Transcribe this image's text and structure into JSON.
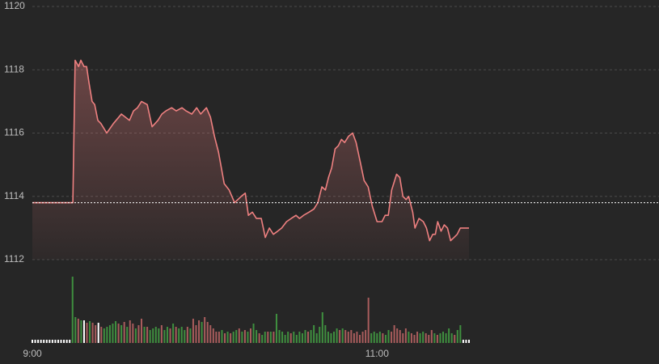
{
  "chart_data": {
    "type": "line",
    "x": [
      0,
      14.1,
      14.9,
      16.1,
      16.9,
      18.0,
      18.9,
      19.7,
      20.8,
      21.7,
      22.8,
      23.9,
      25.9,
      28.2,
      31.0,
      32.4,
      33.8,
      35.2,
      36.6,
      38.0,
      40.0,
      41.7,
      43.7,
      45.1,
      46.5,
      48.5,
      50.1,
      52.1,
      53.5,
      55.5,
      57.2,
      58.6,
      60.6,
      62.0,
      63.4,
      64.8,
      66.8,
      68.5,
      70.4,
      72.7,
      74.1,
      75.2,
      76.6,
      78.0,
      79.7,
      81.1,
      82.5,
      83.9,
      85.4,
      86.8,
      88.5,
      90.1,
      91.8,
      93.0,
      94.4,
      96.3,
      98.0,
      99.4,
      100.8,
      102.0,
      103.1,
      104.2,
      105.4,
      106.5,
      107.6,
      108.7,
      110.1,
      111.5,
      112.7,
      114.1,
      115.5,
      116.9,
      118.3,
      120.0,
      121.7,
      122.8,
      123.9,
      125.1,
      126.8,
      127.9,
      129.0,
      130.1,
      131.0,
      132.4,
      133.2,
      134.6,
      136.1,
      137.2,
      138.3,
      139.4,
      140.3,
      141.1,
      142.3,
      143.4,
      144.5,
      145.6,
      146.8,
      147.9,
      149.0,
      152.0
    ],
    "series": [
      {
        "color": "#ee8080",
        "values": [
          1113.8,
          1113.8,
          1118.3,
          1118.1,
          1118.3,
          1118.1,
          1118.1,
          1117.6,
          1117.0,
          1116.9,
          1116.4,
          1116.3,
          1116.0,
          1116.3,
          1116.6,
          1116.5,
          1116.4,
          1116.7,
          1116.8,
          1117.0,
          1116.9,
          1116.2,
          1116.4,
          1116.6,
          1116.7,
          1116.8,
          1116.7,
          1116.8,
          1116.7,
          1116.6,
          1116.8,
          1116.6,
          1116.8,
          1116.5,
          1115.9,
          1115.4,
          1114.4,
          1114.2,
          1113.8,
          1114.0,
          1114.1,
          1113.4,
          1113.5,
          1113.3,
          1113.3,
          1112.7,
          1113.0,
          1112.8,
          1112.9,
          1113.0,
          1113.2,
          1113.3,
          1113.4,
          1113.3,
          1113.4,
          1113.5,
          1113.6,
          1113.8,
          1114.3,
          1114.2,
          1114.6,
          1114.9,
          1115.5,
          1115.6,
          1115.8,
          1115.7,
          1115.9,
          1116.0,
          1115.7,
          1115.1,
          1114.5,
          1114.3,
          1113.7,
          1113.2,
          1113.2,
          1113.4,
          1113.4,
          1114.2,
          1114.7,
          1114.6,
          1114.0,
          1113.9,
          1114.0,
          1113.5,
          1113.0,
          1113.3,
          1113.2,
          1113.0,
          1112.6,
          1112.8,
          1112.8,
          1113.2,
          1112.9,
          1113.1,
          1113.0,
          1112.6,
          1112.7,
          1112.8,
          1113.0,
          1113.0
        ]
      }
    ],
    "reference": 1113.8,
    "xlim": [
      0,
      152
    ],
    "xticks": [
      {
        "value": 0,
        "label": "9:00"
      },
      {
        "value": 120,
        "label": "11:00"
      }
    ],
    "ylim": [
      1112,
      1120
    ],
    "yticks": [
      1112,
      1114,
      1116,
      1118,
      1120
    ],
    "grid": true,
    "volume": {
      "ylim": [
        0,
        90
      ],
      "palette": {
        "u": "#3f8f3f",
        "d": "#a85c5c",
        "f": "#ffffff"
      },
      "values": [
        4,
        4,
        4,
        4,
        4,
        4,
        4,
        4,
        4,
        4,
        4,
        4,
        4,
        4,
        82,
        32,
        30,
        28,
        28,
        25,
        27,
        25,
        22,
        25,
        20,
        18,
        20,
        22,
        24,
        27,
        24,
        22,
        26,
        20,
        28,
        24,
        18,
        22,
        30,
        20,
        20,
        16,
        18,
        20,
        18,
        22,
        16,
        20,
        18,
        24,
        20,
        18,
        20,
        16,
        20,
        18,
        30,
        22,
        28,
        26,
        32,
        26,
        22,
        18,
        14,
        14,
        16,
        12,
        14,
        12,
        14,
        16,
        18,
        14,
        16,
        14,
        18,
        24,
        16,
        12,
        10,
        14,
        14,
        14,
        14,
        36,
        16,
        14,
        10,
        14,
        12,
        14,
        10,
        14,
        12,
        16,
        14,
        16,
        22,
        12,
        20,
        38,
        22,
        14,
        12,
        14,
        18,
        16,
        18,
        16,
        14,
        16,
        12,
        14,
        10,
        14,
        16,
        56,
        12,
        14,
        12,
        14,
        12,
        10,
        16,
        14,
        22,
        18,
        16,
        12,
        18,
        14,
        12,
        10,
        14,
        12,
        14,
        12,
        10,
        16,
        12,
        10,
        12,
        14,
        12,
        18,
        12,
        10,
        16,
        22,
        4,
        4,
        4
      ],
      "direction": [
        "f",
        "f",
        "f",
        "f",
        "f",
        "f",
        "f",
        "f",
        "f",
        "f",
        "f",
        "f",
        "f",
        "f",
        "u",
        "u",
        "d",
        "u",
        "f",
        "d",
        "u",
        "d",
        "d",
        "f",
        "d",
        "u",
        "u",
        "u",
        "u",
        "u",
        "d",
        "u",
        "d",
        "u",
        "d",
        "d",
        "u",
        "d",
        "d",
        "u",
        "d",
        "u",
        "u",
        "u",
        "u",
        "d",
        "u",
        "u",
        "d",
        "u",
        "d",
        "u",
        "u",
        "u",
        "d",
        "u",
        "d",
        "d",
        "d",
        "u",
        "d",
        "d",
        "d",
        "d",
        "d",
        "d",
        "u",
        "d",
        "u",
        "d",
        "u",
        "u",
        "d",
        "u",
        "d",
        "u",
        "d",
        "u",
        "u",
        "d",
        "u",
        "u",
        "d",
        "u",
        "d",
        "u",
        "u",
        "u",
        "u",
        "u",
        "d",
        "u",
        "u",
        "u",
        "u",
        "u",
        "d",
        "u",
        "u",
        "u",
        "u",
        "u",
        "u",
        "u",
        "u",
        "u",
        "u",
        "d",
        "u",
        "d",
        "d",
        "d",
        "d",
        "d",
        "d",
        "d",
        "d",
        "d",
        "u",
        "u",
        "u",
        "u",
        "d",
        "u",
        "u",
        "d",
        "d",
        "d",
        "d",
        "d",
        "d",
        "u",
        "d",
        "d",
        "d",
        "u",
        "u",
        "d",
        "d",
        "d",
        "u",
        "d",
        "u",
        "u",
        "u",
        "u",
        "u",
        "d",
        "u",
        "u",
        "f",
        "f",
        "f"
      ]
    }
  }
}
